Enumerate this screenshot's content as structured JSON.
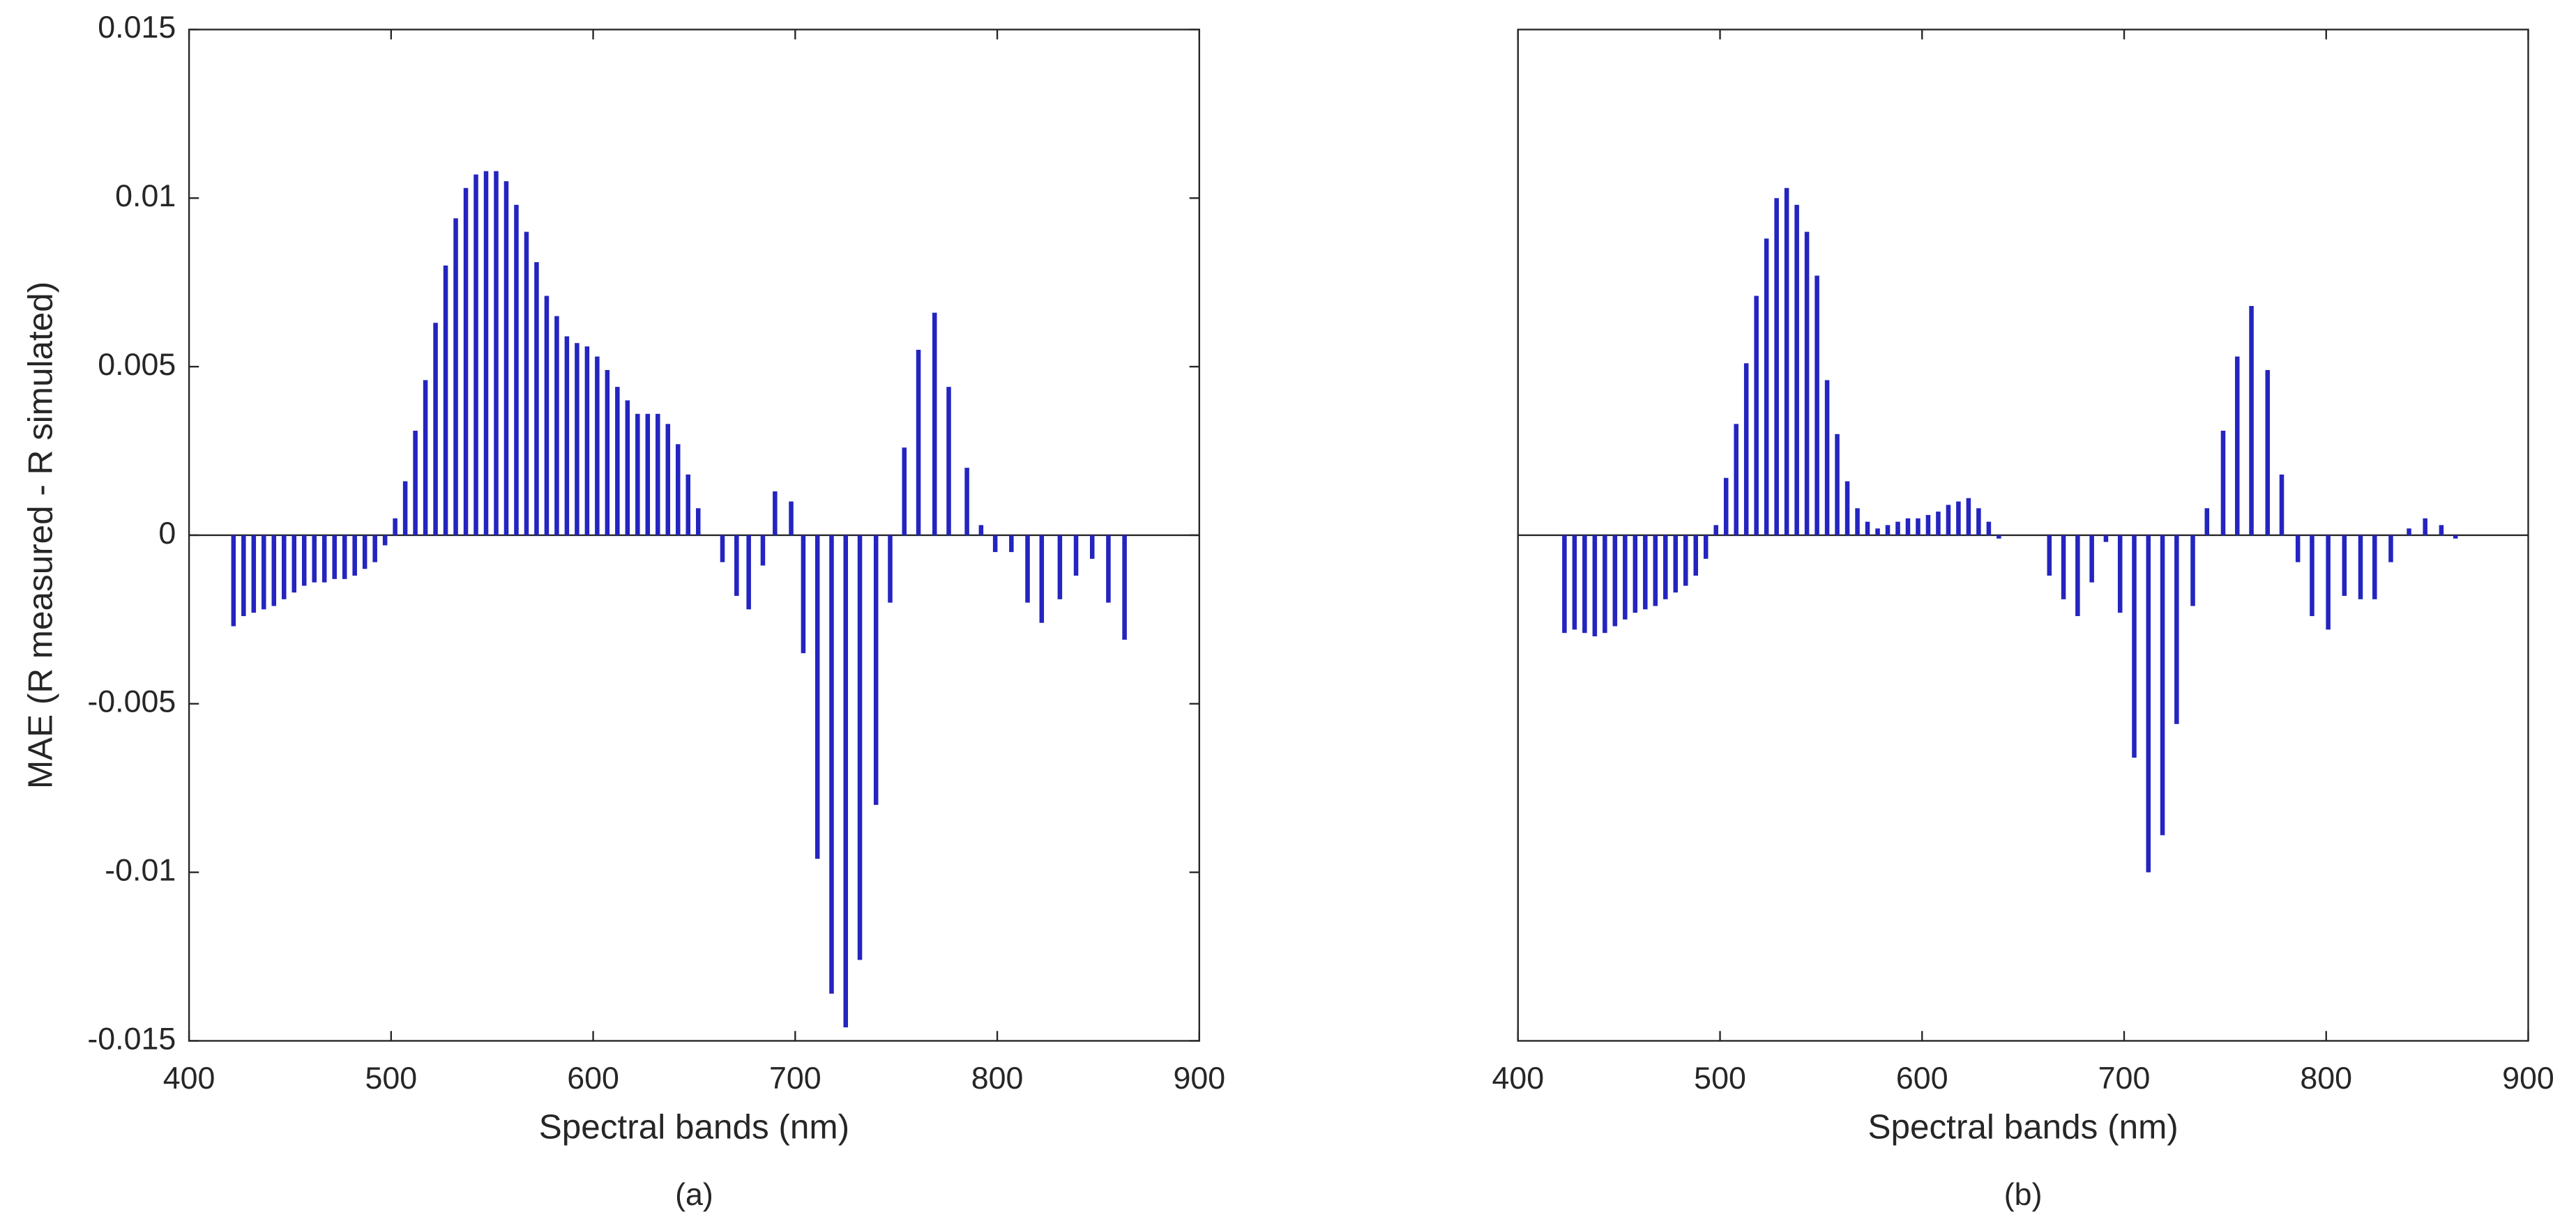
{
  "chart_data": [
    {
      "type": "bar",
      "color": "#2424c0",
      "ylabel": "MAE (R measured - R simulated)",
      "xlabel": "Spectral bands (nm)",
      "caption": "(a)",
      "xlim": [
        400,
        900
      ],
      "xticks": [
        400,
        500,
        600,
        700,
        800,
        900
      ],
      "ylim": [
        -0.015,
        0.015
      ],
      "yticks": [
        -0.015,
        -0.01,
        -0.005,
        0,
        0.005,
        0.01,
        0.015
      ],
      "x": [
        422,
        427,
        432,
        437,
        442,
        447,
        452,
        457,
        462,
        467,
        472,
        477,
        482,
        487,
        492,
        497,
        502,
        507,
        512,
        517,
        522,
        527,
        532,
        537,
        542,
        547,
        552,
        557,
        562,
        567,
        572,
        577,
        582,
        587,
        592,
        597,
        602,
        607,
        612,
        617,
        622,
        627,
        632,
        637,
        642,
        647,
        652,
        664,
        671,
        677,
        684,
        690,
        698,
        704,
        711,
        718,
        725,
        732,
        740,
        747,
        754,
        761,
        769,
        776,
        785,
        792,
        799,
        807,
        815,
        822,
        831,
        839,
        847,
        855,
        863
      ],
      "values": [
        -0.0027,
        -0.0024,
        -0.0023,
        -0.0022,
        -0.0021,
        -0.0019,
        -0.0017,
        -0.0015,
        -0.0014,
        -0.0014,
        -0.0013,
        -0.0013,
        -0.0012,
        -0.001,
        -0.0008,
        -0.0003,
        0.0005,
        0.0016,
        0.0031,
        0.0046,
        0.0063,
        0.008,
        0.0094,
        0.0103,
        0.0107,
        0.0108,
        0.0108,
        0.0105,
        0.0098,
        0.009,
        0.0081,
        0.0071,
        0.0065,
        0.0059,
        0.0057,
        0.0056,
        0.0053,
        0.0049,
        0.0044,
        0.004,
        0.0036,
        0.0036,
        0.0036,
        0.0033,
        0.0027,
        0.0018,
        0.0008,
        -0.0008,
        -0.0018,
        -0.0022,
        -0.0009,
        0.0013,
        0.001,
        -0.0035,
        -0.0096,
        -0.0136,
        -0.0146,
        -0.0126,
        -0.008,
        -0.002,
        0.0026,
        0.0055,
        0.0066,
        0.0044,
        0.002,
        0.0003,
        -0.0005,
        -0.0005,
        -0.002,
        -0.0026,
        -0.0019,
        -0.0012,
        -0.0007,
        -0.002,
        -0.0031
      ]
    },
    {
      "type": "bar",
      "color": "#2424c0",
      "xlabel": "Spectral bands (nm)",
      "caption": "(b)",
      "xlim": [
        400,
        900
      ],
      "xticks": [
        400,
        500,
        600,
        700,
        800,
        900
      ],
      "ylim": [
        -0.015,
        0.015
      ],
      "x": [
        423,
        428,
        433,
        438,
        443,
        448,
        453,
        458,
        463,
        468,
        473,
        478,
        483,
        488,
        493,
        498,
        503,
        508,
        513,
        518,
        523,
        528,
        533,
        538,
        543,
        548,
        553,
        558,
        563,
        568,
        573,
        578,
        583,
        588,
        593,
        598,
        603,
        608,
        613,
        618,
        623,
        628,
        633,
        638,
        663,
        670,
        677,
        684,
        691,
        698,
        705,
        712,
        719,
        726,
        734,
        741,
        749,
        756,
        763,
        771,
        778,
        786,
        793,
        801,
        809,
        817,
        824,
        832,
        841,
        849,
        857,
        864
      ],
      "values": [
        -0.0029,
        -0.0028,
        -0.0029,
        -0.003,
        -0.0029,
        -0.0027,
        -0.0025,
        -0.0023,
        -0.0022,
        -0.0021,
        -0.0019,
        -0.0017,
        -0.0015,
        -0.0012,
        -0.0007,
        0.0003,
        0.0017,
        0.0033,
        0.0051,
        0.0071,
        0.0088,
        0.01,
        0.0103,
        0.0098,
        0.009,
        0.0077,
        0.0046,
        0.003,
        0.0016,
        0.0008,
        0.0004,
        0.0002,
        0.0003,
        0.0004,
        0.0005,
        0.0005,
        0.0006,
        0.0007,
        0.0009,
        0.001,
        0.0011,
        0.0008,
        0.0004,
        -0.0001,
        -0.0012,
        -0.0019,
        -0.0024,
        -0.0014,
        -0.0002,
        -0.0023,
        -0.0066,
        -0.01,
        -0.0089,
        -0.0056,
        -0.0021,
        0.0008,
        0.0031,
        0.0053,
        0.0068,
        0.0049,
        0.0018,
        -0.0008,
        -0.0024,
        -0.0028,
        -0.0018,
        -0.0019,
        -0.0019,
        -0.0008,
        0.0002,
        0.0005,
        0.0003,
        -0.0001
      ]
    }
  ]
}
